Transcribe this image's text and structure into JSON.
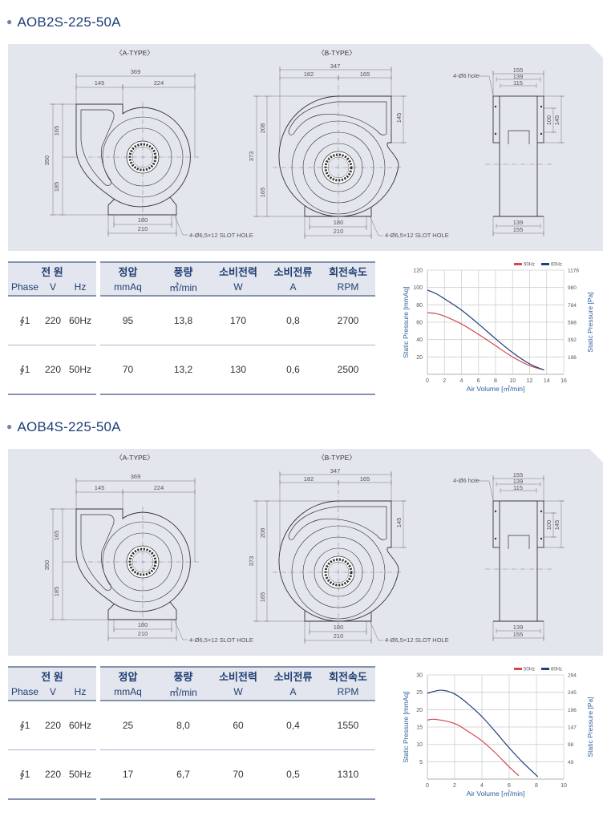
{
  "table_header": {
    "group_power": "전 원",
    "col_pressure": "정압",
    "col_airflow": "풍량",
    "col_power": "소비전력",
    "col_current": "소비전류",
    "col_rpm": "회전속도",
    "unit_phase": "Phase",
    "unit_v": "V",
    "unit_hz": "Hz",
    "unit_pressure": "mmAq",
    "unit_airflow": "㎥/min",
    "unit_power": "W",
    "unit_current": "A",
    "unit_rpm": "RPM"
  },
  "drawing": {
    "a_title": "〈A-TYPE〉",
    "b_title": "〈B-TYPE〉",
    "a": {
      "w": "369",
      "w1": "145",
      "w2": "224",
      "h": "350",
      "h1": "165",
      "h2": "185",
      "b1": "180",
      "b2": "210",
      "slot": "4-Ø6,5×12 SLOT HOLE"
    },
    "b": {
      "w": "347",
      "w1": "182",
      "w2": "165",
      "h": "373",
      "h1": "208",
      "h2": "165",
      "out": "145",
      "b1": "180",
      "b2": "210",
      "slot": "4-Ø6,5×12 SLOT HOLE"
    },
    "side": {
      "hole": "4-Ø6 hole",
      "t1": "155",
      "t2": "139",
      "t3": "115",
      "v1": "100",
      "v2": "145",
      "bt1": "139",
      "bt2": "155"
    }
  },
  "products": [
    {
      "title": "AOB2S-225-50A",
      "rows": [
        {
          "phase": "∮1",
          "v": "220",
          "hz": "60Hz",
          "pressure": "95",
          "airflow": "13,8",
          "power": "170",
          "current": "0,8",
          "rpm": "2700"
        },
        {
          "phase": "∮1",
          "v": "220",
          "hz": "50Hz",
          "pressure": "70",
          "airflow": "13,2",
          "power": "130",
          "current": "0,6",
          "rpm": "2500"
        }
      ]
    },
    {
      "title": "AOB4S-225-50A",
      "rows": [
        {
          "phase": "∮1",
          "v": "220",
          "hz": "60Hz",
          "pressure": "25",
          "airflow": "8,0",
          "power": "60",
          "current": "0,4",
          "rpm": "1550"
        },
        {
          "phase": "∮1",
          "v": "220",
          "hz": "50Hz",
          "pressure": "17",
          "airflow": "6,7",
          "power": "70",
          "current": "0,5",
          "rpm": "1310"
        }
      ]
    }
  ],
  "chart_data": [
    {
      "type": "line",
      "xlabel": "Air Volume [㎥/min]",
      "ylabel": "Static Pressure [mmAq]",
      "y2label": "Static Pressure [Pa]",
      "xlim": [
        0,
        16
      ],
      "ylim": [
        0,
        120
      ],
      "xticks": [
        0,
        2,
        4,
        6,
        8,
        10,
        12,
        14,
        16
      ],
      "yticks": [
        20,
        40,
        60,
        80,
        100,
        120
      ],
      "y2ticks": [
        "196",
        "392",
        "588",
        "784",
        "980",
        "1176"
      ],
      "grid": true,
      "legend": "top-right",
      "series": [
        {
          "name": "50Hz",
          "color": "#d2494f",
          "x": [
            0,
            1,
            2,
            4,
            6,
            8,
            10,
            12,
            13.7
          ],
          "y": [
            71,
            70,
            67,
            58,
            46,
            33,
            20,
            10,
            5
          ]
        },
        {
          "name": "60Hz",
          "color": "#1f3e7a",
          "x": [
            0,
            1,
            2,
            4,
            6,
            8,
            10,
            12,
            13.7
          ],
          "y": [
            97,
            93,
            87,
            74,
            58,
            41,
            25,
            12,
            5
          ]
        }
      ]
    },
    {
      "type": "line",
      "xlabel": "Air Volume [㎥/min]",
      "ylabel": "Static Pressure [mmAq]",
      "y2label": "Static Pressure [Pa]",
      "xlim": [
        0,
        10
      ],
      "ylim": [
        0,
        30
      ],
      "xticks": [
        0,
        2,
        4,
        6,
        8,
        10
      ],
      "yticks": [
        5,
        10,
        15,
        20,
        25,
        30
      ],
      "y2ticks": [
        "49",
        "98",
        "147",
        "196",
        "245",
        "294"
      ],
      "grid": true,
      "legend": "top-right",
      "series": [
        {
          "name": "50Hz",
          "color": "#d2494f",
          "x": [
            0,
            0.6,
            2,
            3,
            4,
            5,
            6,
            6.7
          ],
          "y": [
            17,
            17.2,
            16,
            13.7,
            11,
            7.5,
            3.5,
            1
          ]
        },
        {
          "name": "60Hz",
          "color": "#1f3e7a",
          "x": [
            0,
            1,
            2,
            3,
            4,
            5,
            6,
            7,
            8.1
          ],
          "y": [
            24.7,
            25.6,
            24.5,
            21.6,
            18,
            13.6,
            9,
            4.8,
            0.7
          ]
        }
      ]
    }
  ]
}
